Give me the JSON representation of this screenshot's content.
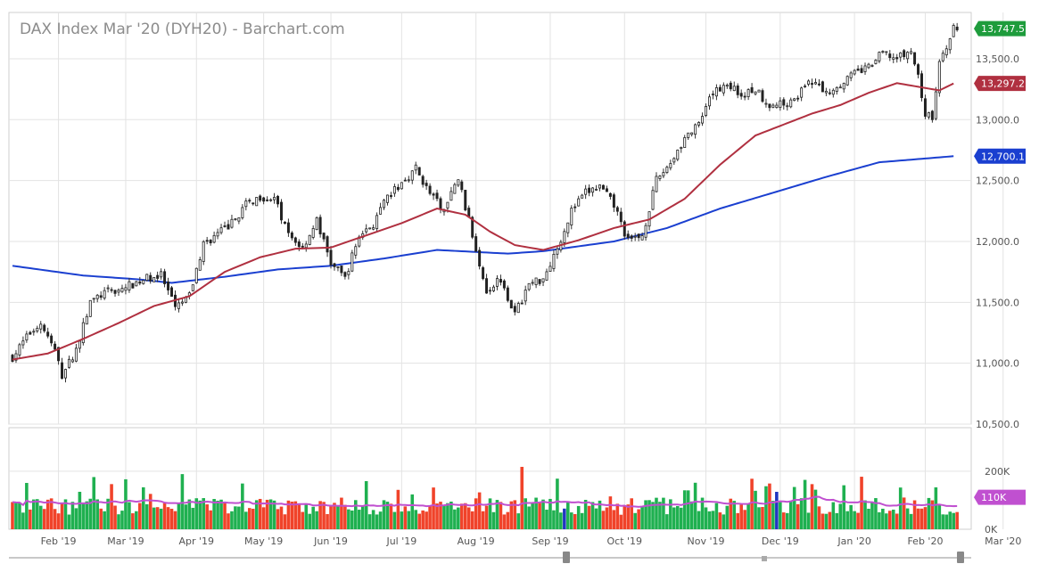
{
  "chart_data": {
    "type": "candlestick",
    "title": "DAX Index Mar '20 (DYH20) - Barchart.com",
    "price_axis": {
      "ticks": [
        10500,
        11000,
        11500,
        12000,
        12500,
        13000,
        13500
      ],
      "tick_labels": [
        "10,500.0",
        "11,000.0",
        "11,500.0",
        "12,000.0",
        "12,500.0",
        "13,000.0",
        "13,500.0"
      ],
      "range": [
        10500,
        13880
      ]
    },
    "volume_axis": {
      "ticks": [
        0,
        200000
      ],
      "tick_labels": [
        "0K",
        "200K"
      ],
      "range": [
        0,
        350000
      ]
    },
    "time_axis": {
      "labels": [
        "Feb '19",
        "Mar '19",
        "Apr '19",
        "May '19",
        "Jun '19",
        "Jul '19",
        "Aug '19",
        "Sep '19",
        "Oct '19",
        "Nov '19",
        "Dec '19",
        "Jan '20",
        "Feb '20",
        "Mar '20"
      ],
      "label_session_index": [
        13,
        32,
        52,
        71,
        90,
        110,
        131,
        152,
        173,
        196,
        217,
        238,
        258,
        280
      ]
    },
    "last_price": "13,747.5",
    "ma_50_last": "13,297.2",
    "ma_200_last": "12,700.1",
    "volume_last": "110K",
    "close_path": [
      [
        0,
        11050
      ],
      [
        5,
        11250
      ],
      [
        8,
        11330
      ],
      [
        12,
        11100
      ],
      [
        14,
        10900
      ],
      [
        18,
        11110
      ],
      [
        22,
        11500
      ],
      [
        26,
        11580
      ],
      [
        30,
        11600
      ],
      [
        34,
        11650
      ],
      [
        38,
        11700
      ],
      [
        42,
        11720
      ],
      [
        46,
        11450
      ],
      [
        50,
        11550
      ],
      [
        54,
        11980
      ],
      [
        58,
        12060
      ],
      [
        62,
        12150
      ],
      [
        66,
        12300
      ],
      [
        70,
        12370
      ],
      [
        74,
        12350
      ],
      [
        78,
        12050
      ],
      [
        82,
        11950
      ],
      [
        86,
        12170
      ],
      [
        90,
        11820
      ],
      [
        94,
        11700
      ],
      [
        98,
        12050
      ],
      [
        102,
        12140
      ],
      [
        106,
        12360
      ],
      [
        110,
        12480
      ],
      [
        114,
        12600
      ],
      [
        118,
        12390
      ],
      [
        122,
        12250
      ],
      [
        126,
        12520
      ],
      [
        130,
        12050
      ],
      [
        134,
        11600
      ],
      [
        138,
        11700
      ],
      [
        142,
        11400
      ],
      [
        146,
        11650
      ],
      [
        150,
        11700
      ],
      [
        154,
        11950
      ],
      [
        158,
        12250
      ],
      [
        162,
        12400
      ],
      [
        166,
        12450
      ],
      [
        170,
        12300
      ],
      [
        174,
        12000
      ],
      [
        178,
        12050
      ],
      [
        182,
        12500
      ],
      [
        186,
        12650
      ],
      [
        190,
        12850
      ],
      [
        194,
        12950
      ],
      [
        198,
        13220
      ],
      [
        202,
        13300
      ],
      [
        206,
        13200
      ],
      [
        210,
        13250
      ],
      [
        214,
        13120
      ],
      [
        218,
        13130
      ],
      [
        222,
        13200
      ],
      [
        226,
        13320
      ],
      [
        230,
        13220
      ],
      [
        234,
        13300
      ],
      [
        238,
        13380
      ],
      [
        242,
        13430
      ],
      [
        246,
        13550
      ],
      [
        250,
        13500
      ],
      [
        254,
        13560
      ],
      [
        256,
        13350
      ],
      [
        258,
        13050
      ],
      [
        260,
        13000
      ],
      [
        262,
        13500
      ],
      [
        264,
        13570
      ],
      [
        266,
        13750
      ]
    ],
    "ma50_path": [
      [
        0,
        11030
      ],
      [
        10,
        11080
      ],
      [
        20,
        11200
      ],
      [
        30,
        11330
      ],
      [
        40,
        11470
      ],
      [
        50,
        11550
      ],
      [
        60,
        11750
      ],
      [
        70,
        11870
      ],
      [
        80,
        11940
      ],
      [
        90,
        11950
      ],
      [
        100,
        12050
      ],
      [
        110,
        12150
      ],
      [
        120,
        12270
      ],
      [
        128,
        12220
      ],
      [
        135,
        12080
      ],
      [
        142,
        11970
      ],
      [
        150,
        11930
      ],
      [
        160,
        12010
      ],
      [
        170,
        12110
      ],
      [
        180,
        12180
      ],
      [
        190,
        12350
      ],
      [
        200,
        12630
      ],
      [
        210,
        12870
      ],
      [
        218,
        12960
      ],
      [
        226,
        13050
      ],
      [
        234,
        13120
      ],
      [
        242,
        13220
      ],
      [
        250,
        13300
      ],
      [
        256,
        13270
      ],
      [
        262,
        13240
      ],
      [
        266,
        13297
      ]
    ],
    "ma200_path": [
      [
        0,
        11800
      ],
      [
        20,
        11720
      ],
      [
        35,
        11690
      ],
      [
        45,
        11660
      ],
      [
        60,
        11710
      ],
      [
        75,
        11770
      ],
      [
        90,
        11800
      ],
      [
        105,
        11860
      ],
      [
        120,
        11930
      ],
      [
        140,
        11900
      ],
      [
        150,
        11920
      ],
      [
        170,
        12000
      ],
      [
        185,
        12110
      ],
      [
        200,
        12270
      ],
      [
        215,
        12400
      ],
      [
        230,
        12530
      ],
      [
        245,
        12650
      ],
      [
        266,
        12700
      ]
    ]
  }
}
